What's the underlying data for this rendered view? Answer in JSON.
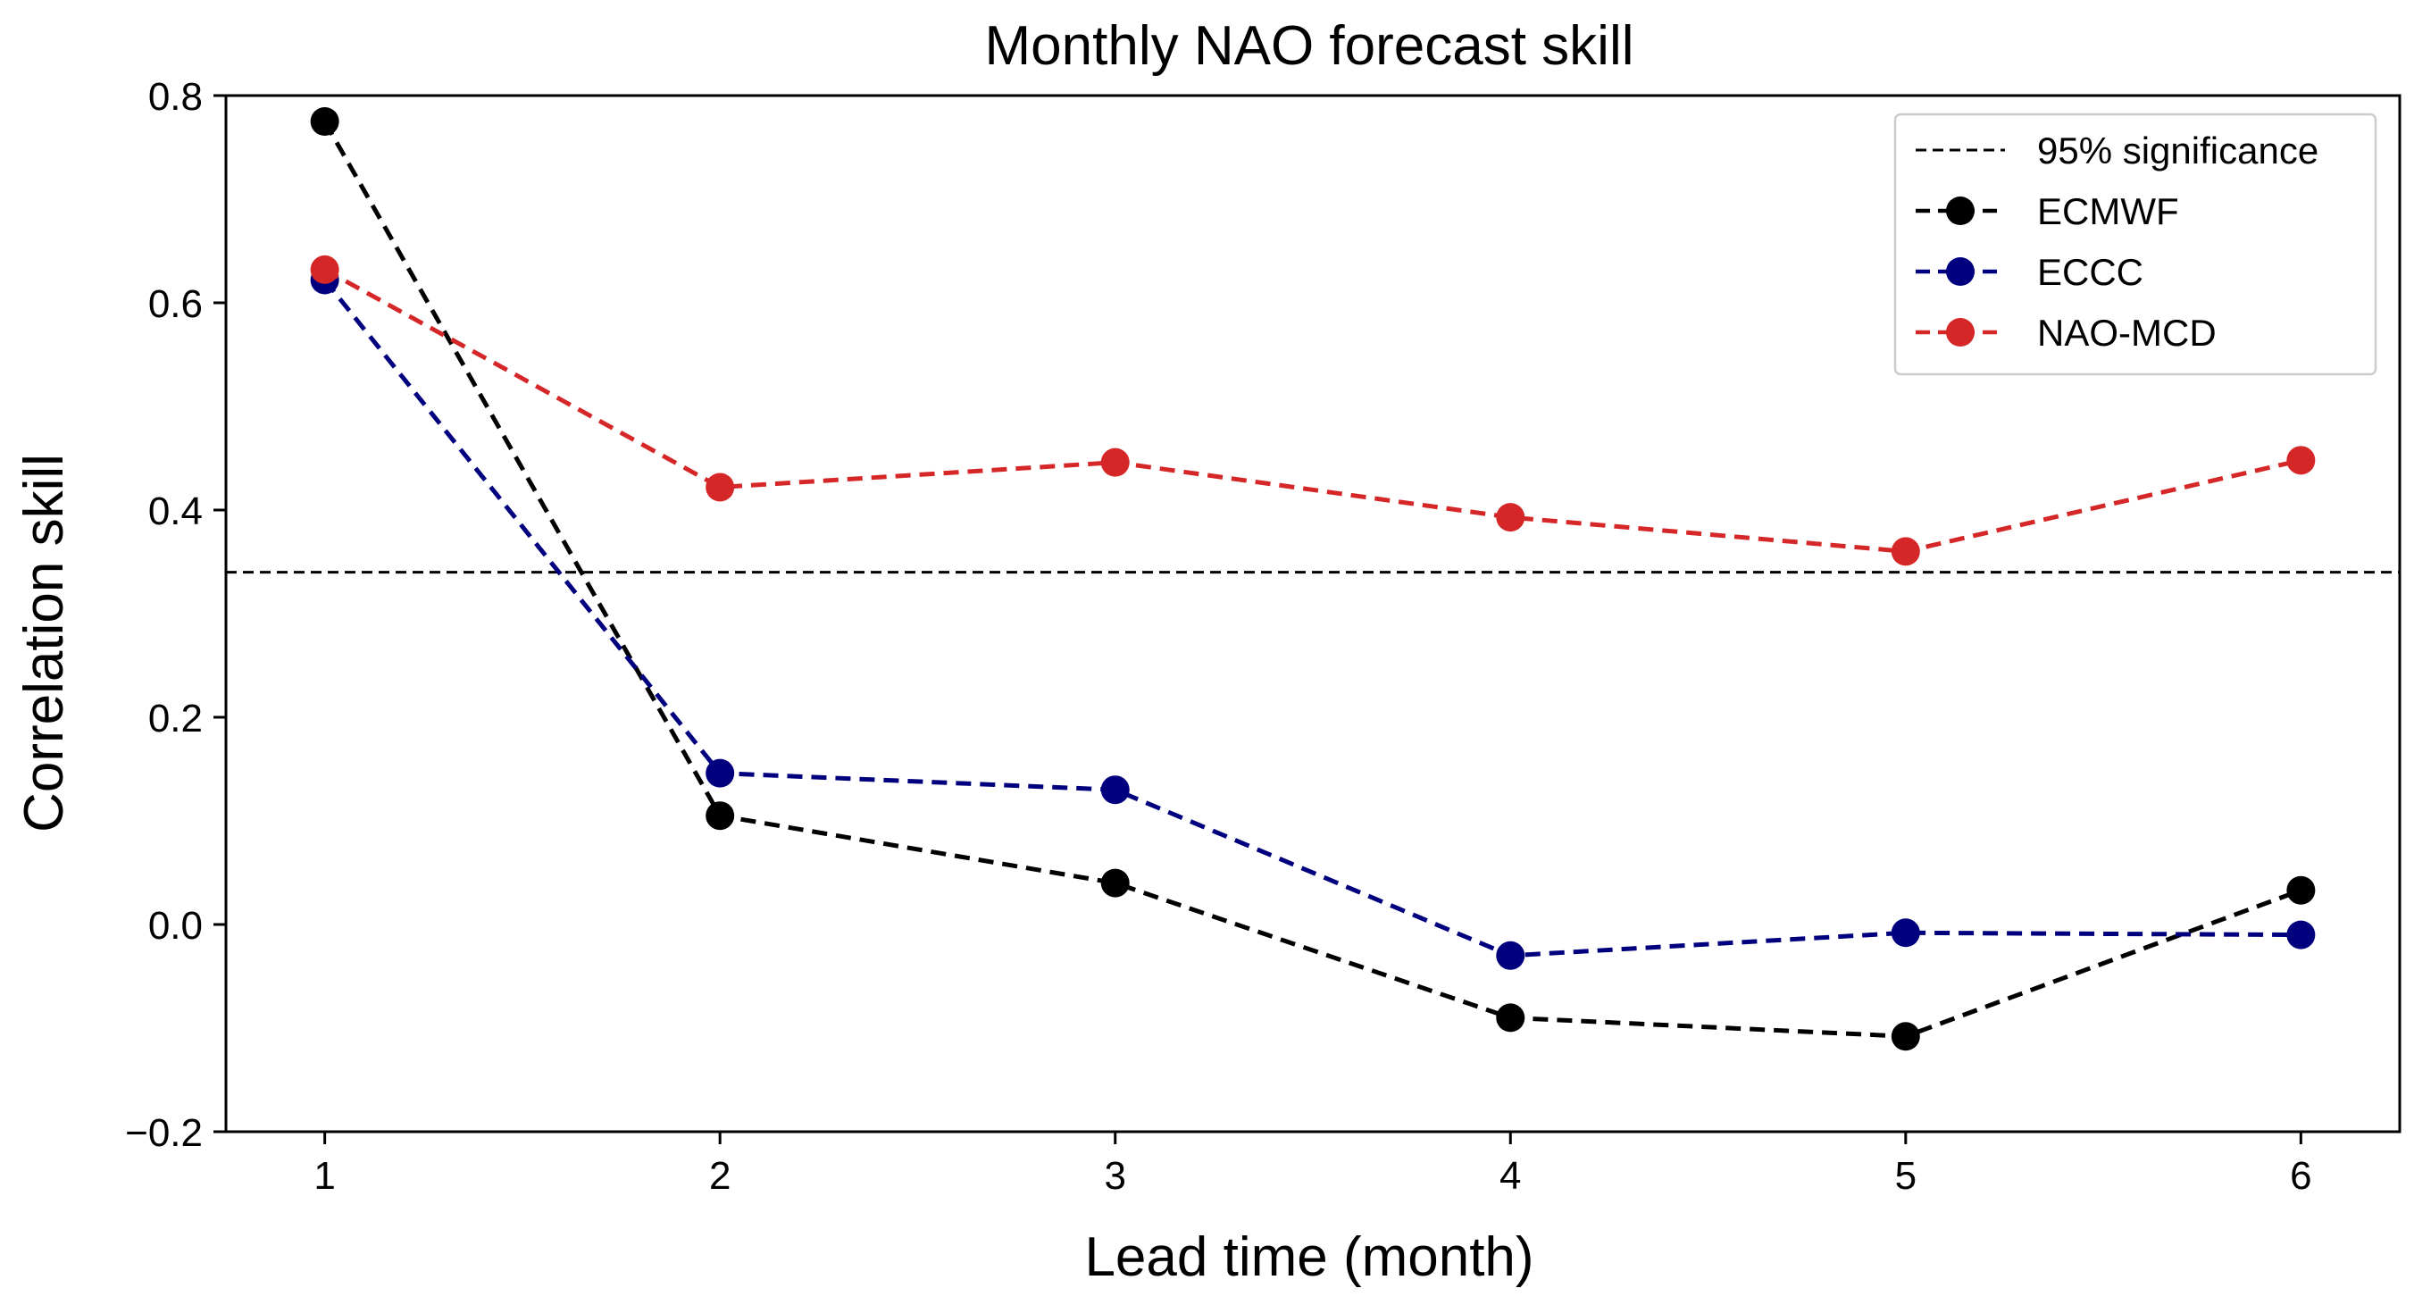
{
  "chart_data": {
    "type": "line",
    "title": "Monthly NAO forecast skill",
    "xlabel": "Lead time (month)",
    "ylabel": "Correlation skill",
    "x": [
      1,
      2,
      3,
      4,
      5,
      6
    ],
    "xlim": [
      0.75,
      6.25
    ],
    "ylim": [
      -0.2,
      0.8
    ],
    "xticks": [
      "1",
      "2",
      "3",
      "4",
      "5",
      "6"
    ],
    "yticks": [
      "−0.2",
      "0.0",
      "0.2",
      "0.4",
      "0.6",
      "0.8"
    ],
    "ytick_values": [
      -0.2,
      0.0,
      0.2,
      0.4,
      0.6,
      0.8
    ],
    "grid": false,
    "legend_position": "top-right",
    "significance": {
      "name": "95% significance",
      "value": 0.34,
      "color": "#000000"
    },
    "series": [
      {
        "name": "ECMWF",
        "color": "#000000",
        "values": [
          0.775,
          0.105,
          0.04,
          -0.09,
          -0.108,
          0.033
        ]
      },
      {
        "name": "ECCC",
        "color": "#00007f",
        "values": [
          0.622,
          0.146,
          0.13,
          -0.03,
          -0.008,
          -0.01
        ]
      },
      {
        "name": "NAO-MCD",
        "color": "#d62728",
        "values": [
          0.632,
          0.422,
          0.446,
          0.393,
          0.36,
          0.448
        ]
      }
    ]
  }
}
